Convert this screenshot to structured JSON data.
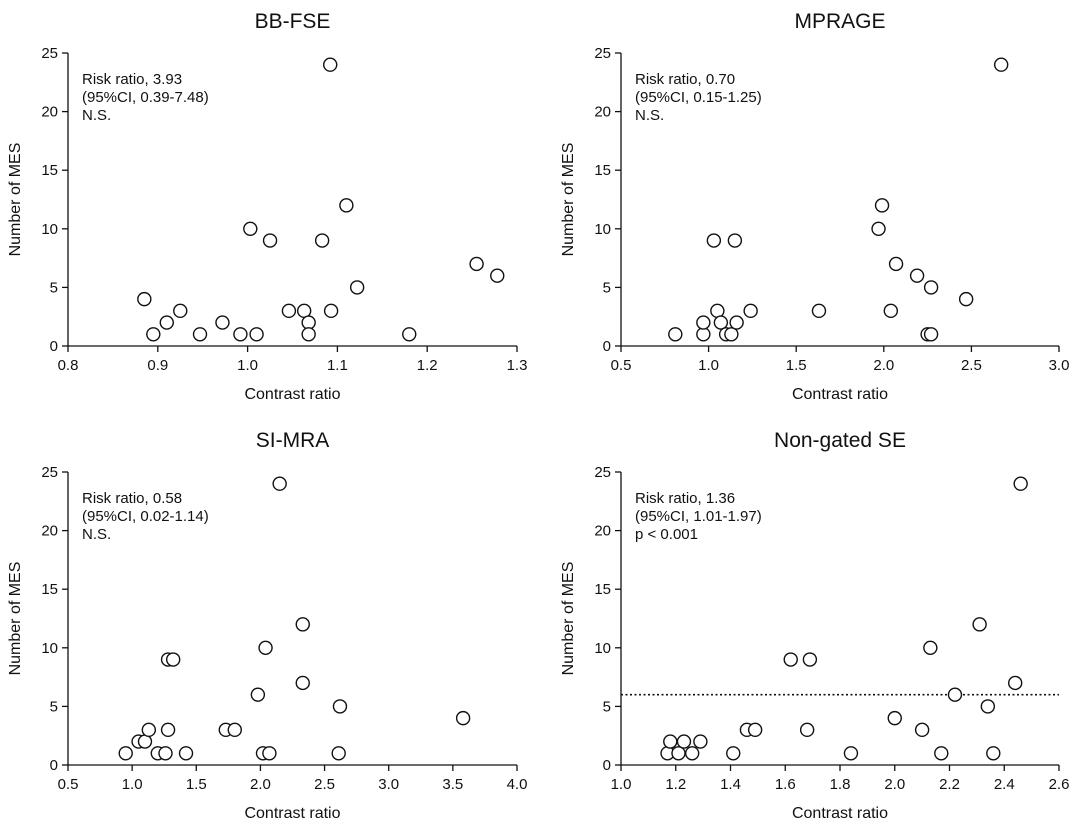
{
  "chart_data": [
    {
      "type": "scatter",
      "title": "BB-FSE",
      "xlabel": "Contrast ratio",
      "ylabel": "Number of MES",
      "xlim": [
        0.8,
        1.3
      ],
      "ylim": [
        0,
        25
      ],
      "xticks": [
        "0.8",
        "0.9",
        "1.0",
        "1.1",
        "1.2",
        "1.3"
      ],
      "yticks": [
        "0",
        "5",
        "10",
        "15",
        "20",
        "25"
      ],
      "annotation": [
        "Risk ratio, 3.93",
        "(95%CI, 0.39-7.48)",
        "N.S."
      ],
      "points": [
        [
          0.885,
          4
        ],
        [
          0.895,
          1
        ],
        [
          0.91,
          2
        ],
        [
          0.925,
          3
        ],
        [
          0.947,
          1
        ],
        [
          0.972,
          2
        ],
        [
          0.992,
          1
        ],
        [
          1.003,
          10
        ],
        [
          1.01,
          1
        ],
        [
          1.025,
          9
        ],
        [
          1.046,
          3
        ],
        [
          1.063,
          3
        ],
        [
          1.068,
          2
        ],
        [
          1.068,
          1
        ],
        [
          1.083,
          9
        ],
        [
          1.092,
          24
        ],
        [
          1.093,
          3
        ],
        [
          1.11,
          12
        ],
        [
          1.122,
          5
        ],
        [
          1.18,
          1
        ],
        [
          1.255,
          7
        ],
        [
          1.278,
          6
        ]
      ]
    },
    {
      "type": "scatter",
      "title": "MPRAGE",
      "xlabel": "Contrast ratio",
      "ylabel": "Number of MES",
      "xlim": [
        0.5,
        3.0
      ],
      "ylim": [
        0,
        25
      ],
      "xticks": [
        "0.5",
        "1.0",
        "1.5",
        "2.0",
        "2.5",
        "3.0"
      ],
      "yticks": [
        "0",
        "5",
        "10",
        "15",
        "20",
        "25"
      ],
      "annotation": [
        "Risk ratio, 0.70",
        "(95%CI, 0.15-1.25)",
        "N.S."
      ],
      "points": [
        [
          0.81,
          1
        ],
        [
          0.97,
          1
        ],
        [
          0.97,
          2
        ],
        [
          1.03,
          9
        ],
        [
          1.05,
          3
        ],
        [
          1.07,
          2
        ],
        [
          1.1,
          1
        ],
        [
          1.13,
          1
        ],
        [
          1.15,
          9
        ],
        [
          1.16,
          2
        ],
        [
          1.24,
          3
        ],
        [
          1.63,
          3
        ],
        [
          1.97,
          10
        ],
        [
          1.99,
          12
        ],
        [
          2.04,
          3
        ],
        [
          2.07,
          7
        ],
        [
          2.19,
          6
        ],
        [
          2.25,
          1
        ],
        [
          2.27,
          1
        ],
        [
          2.27,
          5
        ],
        [
          2.47,
          4
        ],
        [
          2.67,
          24
        ]
      ]
    },
    {
      "type": "scatter",
      "title": "SI-MRA",
      "xlabel": "Contrast ratio",
      "ylabel": "Number of MES",
      "xlim": [
        0.5,
        4.0
      ],
      "ylim": [
        0,
        25
      ],
      "xticks": [
        "0.5",
        "1.0",
        "1.5",
        "2.0",
        "2.5",
        "3.0",
        "3.5",
        "4.0"
      ],
      "yticks": [
        "0",
        "5",
        "10",
        "15",
        "20",
        "25"
      ],
      "annotation": [
        "Risk ratio, 0.58",
        "(95%CI, 0.02-1.14)",
        "N.S."
      ],
      "points": [
        [
          0.95,
          1
        ],
        [
          1.05,
          2
        ],
        [
          1.1,
          2
        ],
        [
          1.13,
          3
        ],
        [
          1.2,
          1
        ],
        [
          1.26,
          1
        ],
        [
          1.28,
          3
        ],
        [
          1.28,
          9
        ],
        [
          1.32,
          9
        ],
        [
          1.42,
          1
        ],
        [
          1.73,
          3
        ],
        [
          1.8,
          3
        ],
        [
          1.98,
          6
        ],
        [
          2.02,
          1
        ],
        [
          2.04,
          10
        ],
        [
          2.07,
          1
        ],
        [
          2.15,
          24
        ],
        [
          2.33,
          12
        ],
        [
          2.33,
          7
        ],
        [
          2.61,
          1
        ],
        [
          2.62,
          5
        ],
        [
          3.58,
          4
        ]
      ]
    },
    {
      "type": "scatter",
      "title": "Non-gated SE",
      "xlabel": "Contrast ratio",
      "ylabel": "Number of MES",
      "xlim": [
        1.0,
        2.6
      ],
      "ylim": [
        0,
        25
      ],
      "xticks": [
        "1.0",
        "1.2",
        "1.4",
        "1.6",
        "1.8",
        "2.0",
        "2.2",
        "2.4",
        "2.6"
      ],
      "yticks": [
        "0",
        "5",
        "10",
        "15",
        "20",
        "25"
      ],
      "annotation": [
        "Risk ratio, 1.36",
        "(95%CI, 1.01-1.97)",
        "p < 0.001"
      ],
      "reference_line_y": 6,
      "points": [
        [
          1.17,
          1
        ],
        [
          1.18,
          2
        ],
        [
          1.21,
          1
        ],
        [
          1.23,
          2
        ],
        [
          1.26,
          1
        ],
        [
          1.29,
          2
        ],
        [
          1.41,
          1
        ],
        [
          1.46,
          3
        ],
        [
          1.49,
          3
        ],
        [
          1.62,
          9
        ],
        [
          1.68,
          3
        ],
        [
          1.69,
          9
        ],
        [
          1.84,
          1
        ],
        [
          2.0,
          4
        ],
        [
          2.1,
          3
        ],
        [
          2.13,
          10
        ],
        [
          2.17,
          1
        ],
        [
          2.22,
          6
        ],
        [
          2.31,
          12
        ],
        [
          2.34,
          5
        ],
        [
          2.36,
          1
        ],
        [
          2.44,
          7
        ],
        [
          2.46,
          24
        ]
      ]
    }
  ]
}
